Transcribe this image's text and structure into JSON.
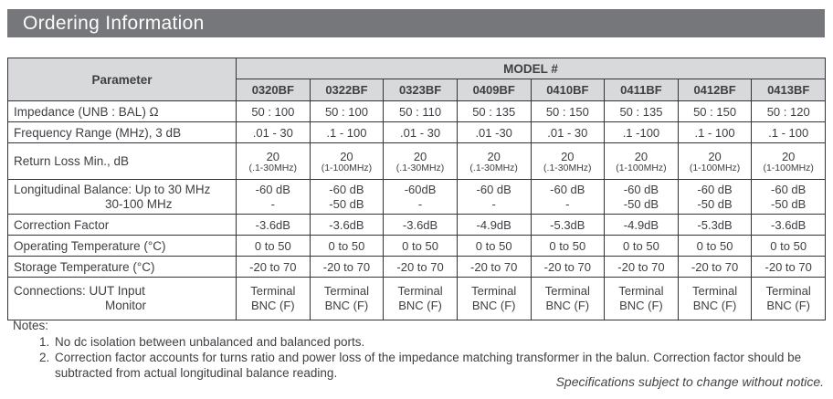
{
  "page": {
    "title": "Ordering Information",
    "footer_note": "Specifications subject to change without notice."
  },
  "table": {
    "header": {
      "parameter_label": "Parameter",
      "model_group_label": "MODEL #",
      "models": [
        "0320BF",
        "0322BF",
        "0323BF",
        "0409BF",
        "0410BF",
        "0411BF",
        "0412BF",
        "0413BF"
      ]
    },
    "rows": {
      "impedance": {
        "label": "Impedance (UNB : BAL) Ω",
        "values": [
          "50 : 100",
          "50 : 100",
          "50 : 110",
          "50 : 135",
          "50 : 150",
          "50 : 135",
          "50 : 150",
          "50 : 120"
        ]
      },
      "frequency": {
        "label": "Frequency Range (MHz), 3 dB",
        "values": [
          ".01 - 30",
          ".1 - 100",
          ".01 - 30",
          ".01 -30",
          ".01 - 30",
          ".1 -100",
          ".1 - 100",
          ".1 - 100"
        ]
      },
      "return_loss": {
        "label": "Return Loss Min., dB",
        "line1": [
          "20",
          "20",
          "20",
          "20",
          "20",
          "20",
          "20",
          "20"
        ],
        "line2": [
          "(.1-30MHz)",
          "(1-100MHz)",
          "(.1-30MHz)",
          "(.1-30MHz)",
          "(.1-30MHz)",
          "(1-100MHz)",
          "(1-100MHz)",
          "(1-100MHz)"
        ]
      },
      "longitudinal": {
        "label_line1": "Longitudinal Balance: Up to 30 MHz",
        "label_line2": "30-100 MHz",
        "line1": [
          "-60 dB",
          "-60 dB",
          "-60dB",
          "-60 dB",
          "-60 dB",
          "-60 dB",
          "-60 dB",
          "-60 dB"
        ],
        "line2": [
          "-",
          "-50 dB",
          "-",
          "-",
          "-",
          "-50 dB",
          "-50 dB",
          "-50 dB"
        ]
      },
      "correction": {
        "label": "Correction Factor",
        "values": [
          "-3.6dB",
          "-3.6dB",
          "-3.6dB",
          "-4.9dB",
          "-5.3dB",
          "-4.9dB",
          "-5.3dB",
          "-3.6dB"
        ]
      },
      "operating": {
        "label": "Operating Temperature (°C)",
        "values": [
          "0 to 50",
          "0 to 50",
          "0 to 50",
          "0 to 50",
          "0 to 50",
          "0 to 50",
          "0 to 50",
          "0 to 50"
        ]
      },
      "storage": {
        "label": "Storage Temperature (°C)",
        "values": [
          "-20 to 70",
          "-20 to 70",
          "-20 to 70",
          "-20 to 70",
          "-20 to 70",
          "-20 to 70",
          "-20 to 70",
          "-20 to 70"
        ]
      },
      "connections": {
        "label_line1": "Connections:  UUT Input",
        "label_line2": "Monitor",
        "line1": [
          "Terminal",
          "Terminal",
          "Terminal",
          "Terminal",
          "Terminal",
          "Terminal",
          "Terminal",
          "Terminal"
        ],
        "line2": [
          "BNC (F)",
          "BNC (F)",
          "BNC (F)",
          "BNC (F)",
          "BNC (F)",
          "BNC (F)",
          "BNC (F)",
          "BNC (F)"
        ]
      }
    }
  },
  "notes": {
    "title": "Notes:",
    "items": [
      "No dc isolation between unbalanced and balanced ports.",
      "Correction factor accounts for turns ratio and power loss of the impedance matching transformer in the balun. Correction factor should be subtracted from actual longitudinal balance reading."
    ]
  }
}
